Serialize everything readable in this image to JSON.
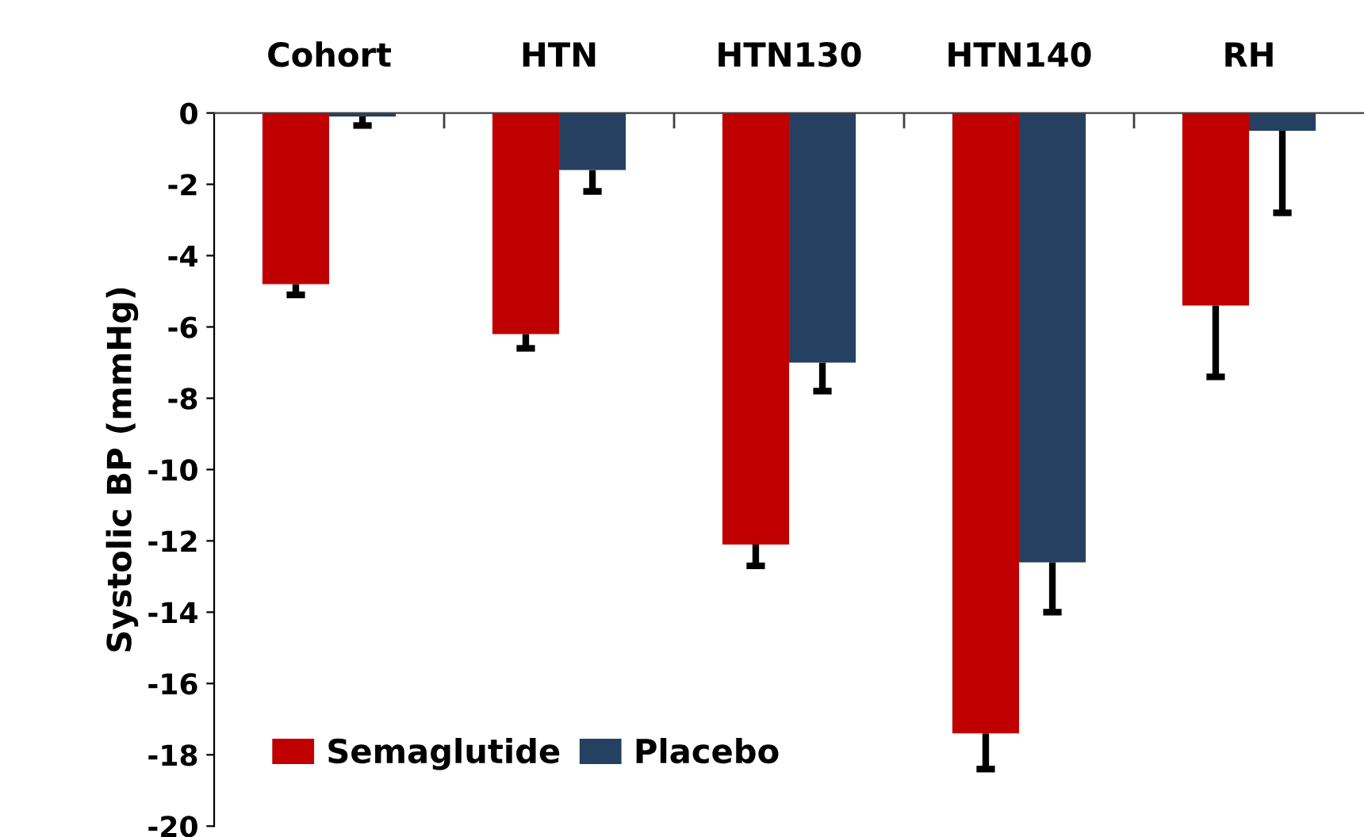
{
  "chart_data": {
    "type": "bar",
    "ylabel": "Systolic BP (mmHg)",
    "categories": [
      "Cohort",
      "HTN",
      "HTN130",
      "HTN140",
      "RH"
    ],
    "series": [
      {
        "name": "Semaglutide",
        "color": "#c00000",
        "values": [
          -4.8,
          -6.2,
          -12.1,
          -17.4,
          -5.4
        ],
        "errors": [
          [
            -5.1,
            -4.8
          ],
          [
            -6.6,
            -6.2
          ],
          [
            -12.7,
            -12.1
          ],
          [
            -18.4,
            -17.4
          ],
          [
            -7.4,
            -5.4
          ]
        ]
      },
      {
        "name": "Placebo",
        "color": "#264061",
        "values": [
          -0.1,
          -1.6,
          -7.0,
          -12.6,
          -0.5
        ],
        "errors": [
          [
            -0.35,
            -0.1
          ],
          [
            -2.2,
            -1.6
          ],
          [
            -7.8,
            -7.0
          ],
          [
            -14.0,
            -12.6
          ],
          [
            -2.8,
            -0.5
          ]
        ]
      }
    ],
    "ylim": [
      -20,
      0
    ],
    "yticks": [
      -20,
      -18,
      -16,
      -14,
      -12,
      -10,
      -8,
      -6,
      -4,
      -2,
      0
    ],
    "grid": false,
    "legend": "bottom left"
  }
}
